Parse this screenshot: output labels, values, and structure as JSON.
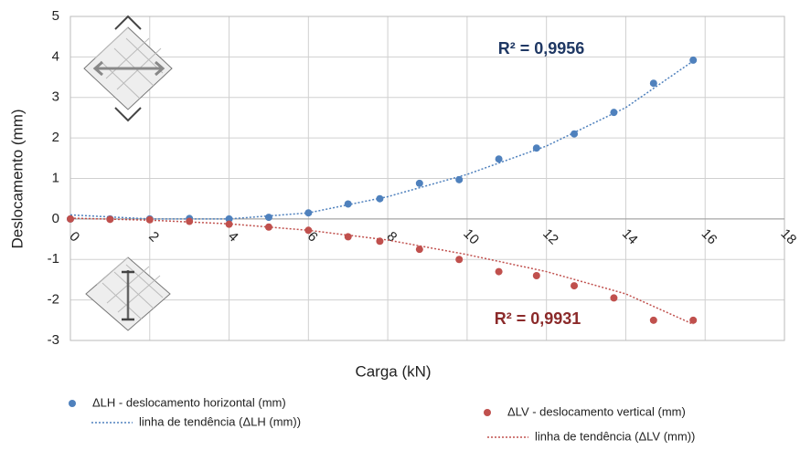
{
  "chart_data": {
    "type": "scatter",
    "x_label": "Carga (kN)",
    "y_label": "Deslocamento (mm)",
    "xlim": [
      0,
      18
    ],
    "xticks": [
      0,
      2,
      4,
      6,
      8,
      10,
      12,
      14,
      16,
      18
    ],
    "ylim": [
      -3,
      5
    ],
    "yticks": [
      -3,
      -2,
      -1,
      0,
      1,
      2,
      3,
      4,
      5
    ],
    "grid": true,
    "series": [
      {
        "name": "ΔLH - deslocamento horizontal (mm)",
        "color": "#4f81bd",
        "kind": "marker",
        "x": [
          0,
          1,
          2,
          3,
          4,
          5,
          6,
          7,
          7.8,
          8.8,
          9.8,
          10.8,
          11.75,
          12.7,
          13.7,
          14.7,
          15.7
        ],
        "values": [
          0,
          0,
          0,
          0.01,
          0,
          0.04,
          0.15,
          0.37,
          0.5,
          0.88,
          0.97,
          1.48,
          1.75,
          2.1,
          2.63,
          3.35,
          3.92
        ]
      },
      {
        "name": "linha de tendência  (ΔLH (mm))",
        "color": "#4f81bd",
        "kind": "dotted-line",
        "x": [
          0,
          2,
          4,
          6,
          8,
          10,
          12,
          14,
          15.7
        ],
        "values": [
          0.1,
          0,
          0,
          0.15,
          0.55,
          1.1,
          1.8,
          2.75,
          3.9
        ]
      },
      {
        "name": "ΔLV  - deslocamento vertical (mm)",
        "color": "#c0504d",
        "kind": "marker",
        "x": [
          0,
          1,
          2,
          3,
          4,
          5,
          6,
          7,
          7.8,
          8.8,
          9.8,
          10.8,
          11.75,
          12.7,
          13.7,
          14.7,
          15.7
        ],
        "values": [
          0,
          -0.01,
          -0.02,
          -0.06,
          -0.13,
          -0.2,
          -0.28,
          -0.44,
          -0.55,
          -0.75,
          -1.0,
          -1.3,
          -1.4,
          -1.65,
          -1.95,
          -2.5,
          -2.5
        ]
      },
      {
        "name": "linha de tendência (ΔLV (mm))",
        "color": "#c0504d",
        "kind": "dotted-line",
        "x": [
          0,
          2,
          4,
          6,
          8,
          10,
          12,
          14,
          15.7
        ],
        "values": [
          0.02,
          -0.03,
          -0.12,
          -0.28,
          -0.52,
          -0.88,
          -1.3,
          -1.85,
          -2.6
        ]
      }
    ],
    "annotations": [
      {
        "text": "R² = 0,9956",
        "color": "#1f3864"
      },
      {
        "text": "R² = 0,9931",
        "color": "#8b2a2a"
      }
    ]
  }
}
